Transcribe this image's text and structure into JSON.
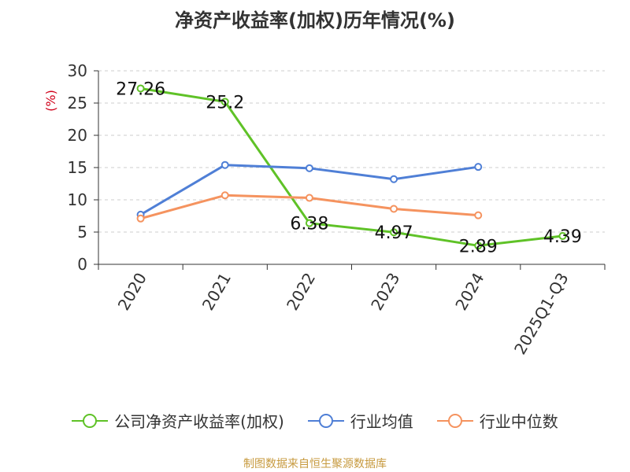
{
  "chart_data": {
    "type": "line",
    "title": "净资产收益率(加权)历年情况(%)",
    "ylabel": "(%)",
    "xlabel": "",
    "categories": [
      "2020",
      "2021",
      "2022",
      "2023",
      "2024",
      "2025Q1-Q3"
    ],
    "ylim": [
      0,
      30
    ],
    "yticks": [
      0,
      5,
      10,
      15,
      20,
      25,
      30
    ],
    "grid": "horizontal dashed",
    "legend_position": "bottom",
    "series": [
      {
        "name": "公司净资产收益率(加权)",
        "color": "#5fc227",
        "values": [
          27.26,
          25.2,
          6.38,
          4.97,
          2.89,
          4.39
        ],
        "labels": [
          "27.26",
          "25.2",
          "6.38",
          "4.97",
          "2.89",
          "4.39"
        ]
      },
      {
        "name": "行业均值",
        "color": "#4f7fd6",
        "values": [
          7.7,
          15.4,
          14.9,
          13.2,
          15.1,
          null
        ]
      },
      {
        "name": "行业中位数",
        "color": "#f5935f",
        "values": [
          7.1,
          10.7,
          10.3,
          8.6,
          7.6,
          null
        ]
      }
    ]
  },
  "footer": {
    "source": "制图数据来自恒生聚源数据库"
  }
}
